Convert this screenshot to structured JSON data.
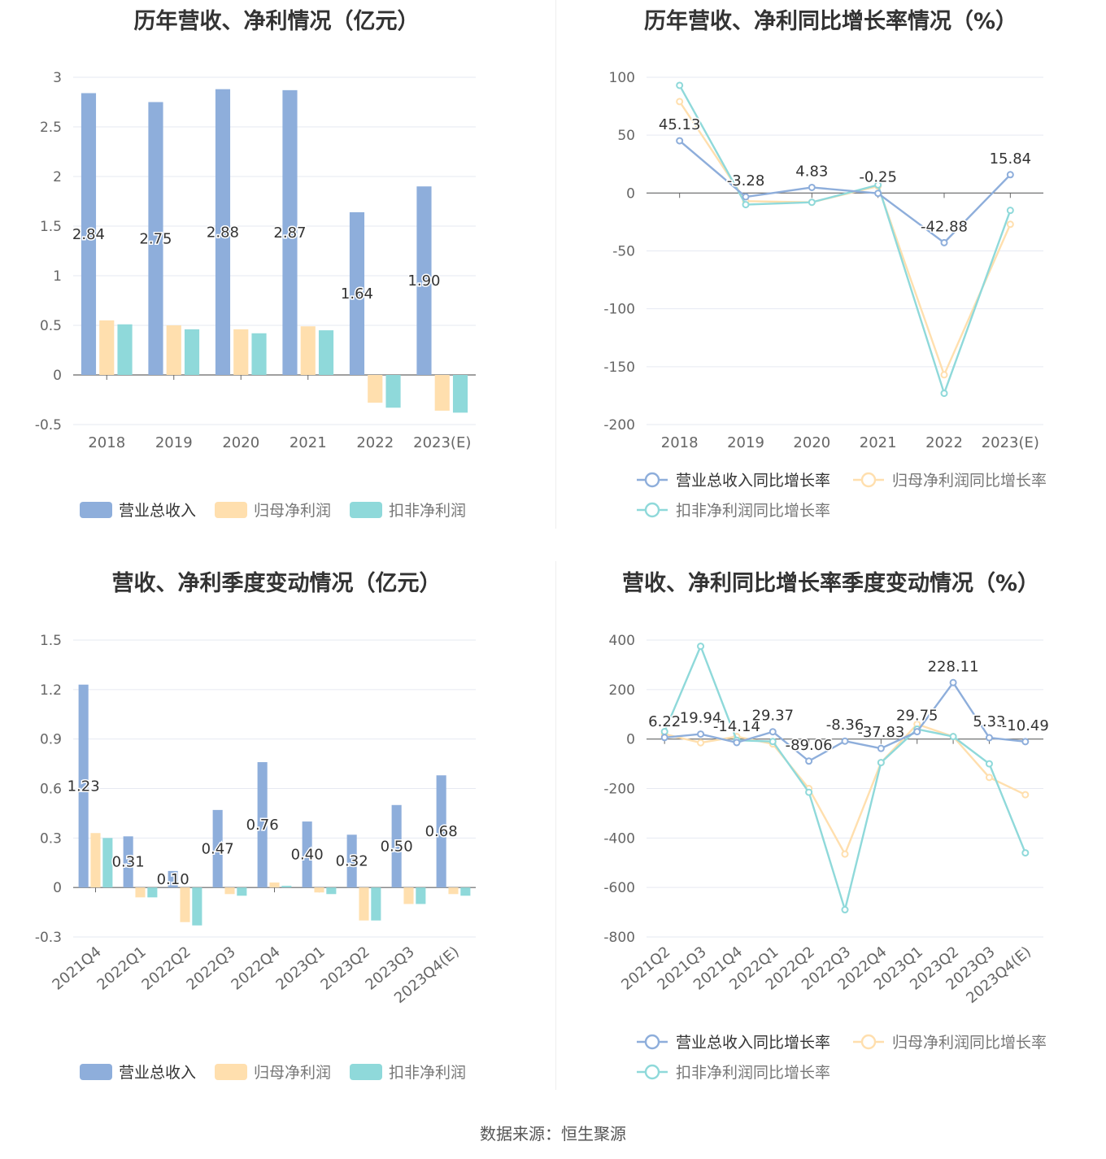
{
  "source": "数据来源：恒生聚源",
  "colors": {
    "revenue": "#8eaedb",
    "net_profit": "#ffdfae",
    "deducted_profit": "#8fd9da",
    "grid": "#e6e9f2",
    "axis": "#666666",
    "label_text": "#333333"
  },
  "chart_data": [
    {
      "id": "annual-bar",
      "type": "bar",
      "title": "历年营收、净利情况（亿元）",
      "categories": [
        "2018",
        "2019",
        "2020",
        "2021",
        "2022",
        "2023(E)"
      ],
      "yticks": [
        "3",
        "2.5",
        "2",
        "1.5",
        "1",
        "0.5",
        "0",
        "-0.5"
      ],
      "ylim": [
        -0.5,
        3
      ],
      "series": [
        {
          "name": "营业总收入",
          "color": "#8eaedb",
          "values": [
            2.84,
            2.75,
            2.88,
            2.87,
            1.64,
            1.9
          ],
          "labels": [
            "2.84",
            "2.75",
            "2.88",
            "2.87",
            "1.64",
            "1.90"
          ]
        },
        {
          "name": "归母净利润",
          "color": "#ffdfae",
          "values": [
            0.55,
            0.5,
            0.46,
            0.49,
            -0.28,
            -0.36
          ]
        },
        {
          "name": "扣非净利润",
          "color": "#8fd9da",
          "values": [
            0.51,
            0.46,
            0.42,
            0.45,
            -0.33,
            -0.38
          ]
        }
      ]
    },
    {
      "id": "annual-line",
      "type": "line",
      "title": "历年营收、净利同比增长率情况（%）",
      "categories": [
        "2018",
        "2019",
        "2020",
        "2021",
        "2022",
        "2023(E)"
      ],
      "yticks": [
        "100",
        "50",
        "0",
        "-50",
        "-100",
        "-150",
        "-200"
      ],
      "ylim": [
        -200,
        100
      ],
      "series": [
        {
          "name": "营业总收入同比增长率",
          "color": "#8eaedb",
          "values": [
            45.13,
            -3.28,
            4.83,
            -0.25,
            -42.88,
            15.84
          ],
          "labels": [
            "45.13",
            "-3.28",
            "4.83",
            "-0.25",
            "-42.88",
            "15.84"
          ]
        },
        {
          "name": "归母净利润同比增长率",
          "color": "#ffdfae",
          "values": [
            79,
            -7,
            -8,
            6,
            -157,
            -27
          ]
        },
        {
          "name": "扣非净利润同比增长率",
          "color": "#8fd9da",
          "values": [
            93,
            -10,
            -8,
            7,
            -173,
            -15
          ]
        }
      ]
    },
    {
      "id": "quarterly-bar",
      "type": "bar",
      "title": "营收、净利季度变动情况（亿元）",
      "categories": [
        "2021Q4",
        "2022Q1",
        "2022Q2",
        "2022Q3",
        "2022Q4",
        "2023Q1",
        "2023Q2",
        "2023Q3",
        "2023Q4(E)"
      ],
      "yticks": [
        "1.5",
        "1.2",
        "0.9",
        "0.6",
        "0.3",
        "0",
        "-0.3"
      ],
      "ylim": [
        -0.3,
        1.5
      ],
      "series": [
        {
          "name": "营业总收入",
          "color": "#8eaedb",
          "values": [
            1.23,
            0.31,
            0.1,
            0.47,
            0.76,
            0.4,
            0.32,
            0.5,
            0.68
          ],
          "labels": [
            "1.23",
            "0.31",
            "0.10",
            "0.47",
            "0.76",
            "0.40",
            "0.32",
            "0.50",
            "0.68"
          ]
        },
        {
          "name": "归母净利润",
          "color": "#ffdfae",
          "values": [
            0.33,
            -0.06,
            -0.21,
            -0.04,
            0.03,
            -0.03,
            -0.2,
            -0.1,
            -0.04
          ]
        },
        {
          "name": "扣非净利润",
          "color": "#8fd9da",
          "values": [
            0.3,
            -0.06,
            -0.23,
            -0.05,
            0.01,
            -0.04,
            -0.2,
            -0.1,
            -0.05
          ]
        }
      ]
    },
    {
      "id": "quarterly-line",
      "type": "line",
      "title": "营收、净利同比增长率季度变动情况（%）",
      "categories": [
        "2021Q2",
        "2021Q3",
        "2021Q4",
        "2022Q1",
        "2022Q2",
        "2022Q3",
        "2022Q4",
        "2023Q1",
        "2023Q2",
        "2023Q3",
        "2023Q4(E)"
      ],
      "yticks": [
        "400",
        "200",
        "0",
        "-200",
        "-400",
        "-600",
        "-800"
      ],
      "ylim": [
        -800,
        400
      ],
      "series": [
        {
          "name": "营业总收入同比增长率",
          "color": "#8eaedb",
          "values": [
            6.22,
            19.94,
            -14.14,
            29.37,
            -89.06,
            -8.36,
            -37.83,
            29.75,
            228.11,
            5.33,
            -10.49
          ],
          "labels": [
            "6.22",
            "19.94",
            "-14.14",
            "29.37",
            "-89.06",
            "-8.36",
            "-37.83",
            "29.75",
            "228.11",
            "5.33",
            "-10.49"
          ]
        },
        {
          "name": "归母净利润同比增长率",
          "color": "#ffdfae",
          "values": [
            20,
            -15,
            10,
            -20,
            -200,
            -465,
            -95,
            60,
            10,
            -155,
            -225
          ]
        },
        {
          "name": "扣非净利润同比增长率",
          "color": "#8fd9da",
          "values": [
            30,
            375,
            -5,
            -10,
            -215,
            -690,
            -95,
            40,
            10,
            -100,
            -460
          ]
        }
      ]
    }
  ]
}
